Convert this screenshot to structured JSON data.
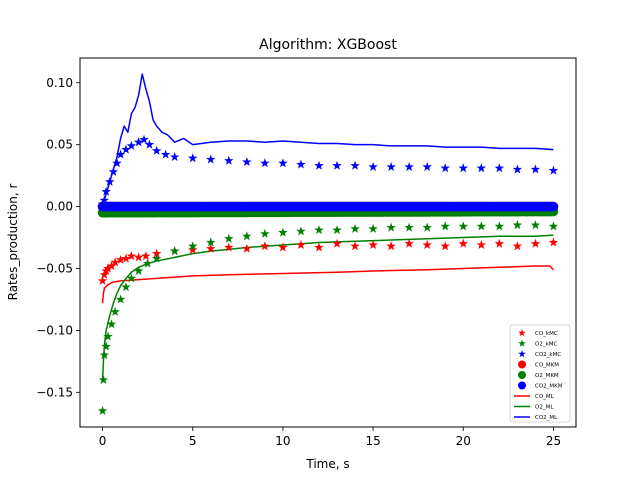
{
  "chart_data": {
    "type": "line",
    "title": "Algorithm: XGBoost",
    "xlabel": "Time, s",
    "ylabel": "Rates_production, r",
    "xlim": [
      -1.25,
      26.25
    ],
    "ylim": [
      -0.178,
      0.12
    ],
    "xticks": [
      0,
      5,
      10,
      15,
      20,
      25
    ],
    "xtick_labels": [
      "0",
      "5",
      "10",
      "15",
      "20",
      "25"
    ],
    "yticks": [
      -0.15,
      -0.1,
      -0.05,
      0.0,
      0.05,
      0.1
    ],
    "ytick_labels": [
      "−0.15",
      "−0.10",
      "−0.05",
      "0.00",
      "0.05",
      "0.10"
    ],
    "grid": false,
    "legend_position": "lower-right",
    "series": [
      {
        "name": "CO_kMC",
        "marker": "star",
        "color": "#ff0000",
        "x": [
          0,
          0.1,
          0.2,
          0.3,
          0.5,
          0.7,
          1,
          1.3,
          1.6,
          2,
          2.4,
          3,
          4,
          5,
          6,
          7,
          8,
          9,
          10,
          11,
          12,
          13,
          14,
          15,
          16,
          17,
          18,
          19,
          20,
          21,
          22,
          23,
          24,
          25
        ],
        "y": [
          -0.06,
          -0.055,
          -0.052,
          -0.05,
          -0.048,
          -0.045,
          -0.043,
          -0.042,
          -0.04,
          -0.041,
          -0.04,
          -0.038,
          -0.036,
          -0.035,
          -0.034,
          -0.033,
          -0.034,
          -0.032,
          -0.033,
          -0.031,
          -0.033,
          -0.03,
          -0.032,
          -0.031,
          -0.032,
          -0.03,
          -0.031,
          -0.032,
          -0.03,
          -0.031,
          -0.03,
          -0.032,
          -0.03,
          -0.029
        ]
      },
      {
        "name": "O2_kMC",
        "marker": "star",
        "color": "#008000",
        "x": [
          0,
          0.05,
          0.1,
          0.2,
          0.3,
          0.5,
          0.7,
          1,
          1.3,
          1.6,
          2,
          2.5,
          3,
          4,
          5,
          6,
          7,
          8,
          9,
          10,
          11,
          12,
          13,
          14,
          15,
          16,
          17,
          18,
          19,
          20,
          21,
          22,
          23,
          24,
          25
        ],
        "y": [
          -0.165,
          -0.14,
          -0.12,
          -0.113,
          -0.105,
          -0.095,
          -0.085,
          -0.075,
          -0.065,
          -0.058,
          -0.052,
          -0.046,
          -0.042,
          -0.036,
          -0.032,
          -0.029,
          -0.026,
          -0.024,
          -0.022,
          -0.021,
          -0.02,
          -0.019,
          -0.019,
          -0.018,
          -0.018,
          -0.017,
          -0.017,
          -0.017,
          -0.016,
          -0.016,
          -0.016,
          -0.016,
          -0.015,
          -0.015,
          -0.016
        ]
      },
      {
        "name": "CO2_kMC",
        "marker": "star",
        "color": "#0000ff",
        "x": [
          0,
          0.1,
          0.2,
          0.4,
          0.6,
          0.8,
          1,
          1.3,
          1.6,
          2,
          2.3,
          2.6,
          3,
          3.5,
          4,
          5,
          6,
          7,
          8,
          9,
          10,
          11,
          12,
          13,
          14,
          15,
          16,
          17,
          18,
          19,
          20,
          21,
          22,
          23,
          24,
          25
        ],
        "y": [
          0.002,
          0.005,
          0.012,
          0.02,
          0.028,
          0.035,
          0.042,
          0.046,
          0.049,
          0.052,
          0.054,
          0.05,
          0.045,
          0.042,
          0.04,
          0.039,
          0.038,
          0.037,
          0.036,
          0.035,
          0.035,
          0.034,
          0.033,
          0.033,
          0.033,
          0.032,
          0.032,
          0.032,
          0.032,
          0.031,
          0.031,
          0.031,
          0.031,
          0.03,
          0.03,
          0.029
        ]
      },
      {
        "name": "CO_MKM",
        "marker": "circle",
        "color": "#ff0000",
        "x": [
          0,
          25
        ],
        "y": [
          0,
          0
        ]
      },
      {
        "name": "O2_MKM",
        "marker": "circle",
        "color": "#008000",
        "x": [
          0,
          25
        ],
        "y": [
          -0.005,
          -0.004
        ]
      },
      {
        "name": "CO2_MKM",
        "marker": "circle",
        "color": "#0000ff",
        "x": [
          0,
          25
        ],
        "y": [
          0,
          0
        ]
      },
      {
        "name": "CO_ML",
        "marker": "line",
        "color": "#ff0000",
        "x": [
          0,
          0.05,
          0.1,
          0.3,
          0.6,
          1,
          2,
          3,
          4,
          5,
          7,
          10,
          13,
          15,
          18,
          20,
          22,
          24,
          24.8,
          25
        ],
        "y": [
          -0.078,
          -0.07,
          -0.066,
          -0.063,
          -0.061,
          -0.06,
          -0.059,
          -0.058,
          -0.057,
          -0.056,
          -0.055,
          -0.054,
          -0.053,
          -0.052,
          -0.051,
          -0.05,
          -0.049,
          -0.048,
          -0.048,
          -0.051
        ]
      },
      {
        "name": "O2_ML",
        "marker": "line",
        "color": "#008000",
        "x": [
          0,
          0.05,
          0.1,
          0.2,
          0.4,
          0.6,
          0.8,
          1,
          1.3,
          1.6,
          2,
          2.5,
          3,
          4,
          5,
          6,
          8,
          10,
          12,
          14,
          16,
          18,
          20,
          22,
          24,
          25
        ],
        "y": [
          -0.14,
          -0.125,
          -0.112,
          -0.1,
          -0.088,
          -0.078,
          -0.07,
          -0.064,
          -0.058,
          -0.053,
          -0.049,
          -0.046,
          -0.044,
          -0.041,
          -0.038,
          -0.036,
          -0.033,
          -0.031,
          -0.029,
          -0.028,
          -0.027,
          -0.026,
          -0.025,
          -0.024,
          -0.024,
          -0.023
        ]
      },
      {
        "name": "CO2_ML",
        "marker": "line",
        "color": "#0000ff",
        "x": [
          0,
          0.2,
          0.4,
          0.6,
          0.8,
          1,
          1.2,
          1.4,
          1.6,
          1.8,
          2,
          2.2,
          2.4,
          2.6,
          2.8,
          3,
          3.3,
          3.6,
          4,
          4.5,
          5,
          6,
          7,
          8,
          9,
          10,
          11,
          12,
          13,
          14,
          15,
          16,
          17,
          18,
          19,
          20,
          21,
          22,
          23,
          24,
          25
        ],
        "y": [
          0.002,
          0.01,
          0.02,
          0.03,
          0.04,
          0.055,
          0.065,
          0.06,
          0.075,
          0.08,
          0.09,
          0.107,
          0.095,
          0.085,
          0.07,
          0.065,
          0.06,
          0.058,
          0.052,
          0.055,
          0.05,
          0.052,
          0.053,
          0.053,
          0.052,
          0.053,
          0.052,
          0.051,
          0.051,
          0.05,
          0.05,
          0.049,
          0.049,
          0.049,
          0.048,
          0.048,
          0.048,
          0.047,
          0.047,
          0.047,
          0.046
        ]
      }
    ]
  }
}
